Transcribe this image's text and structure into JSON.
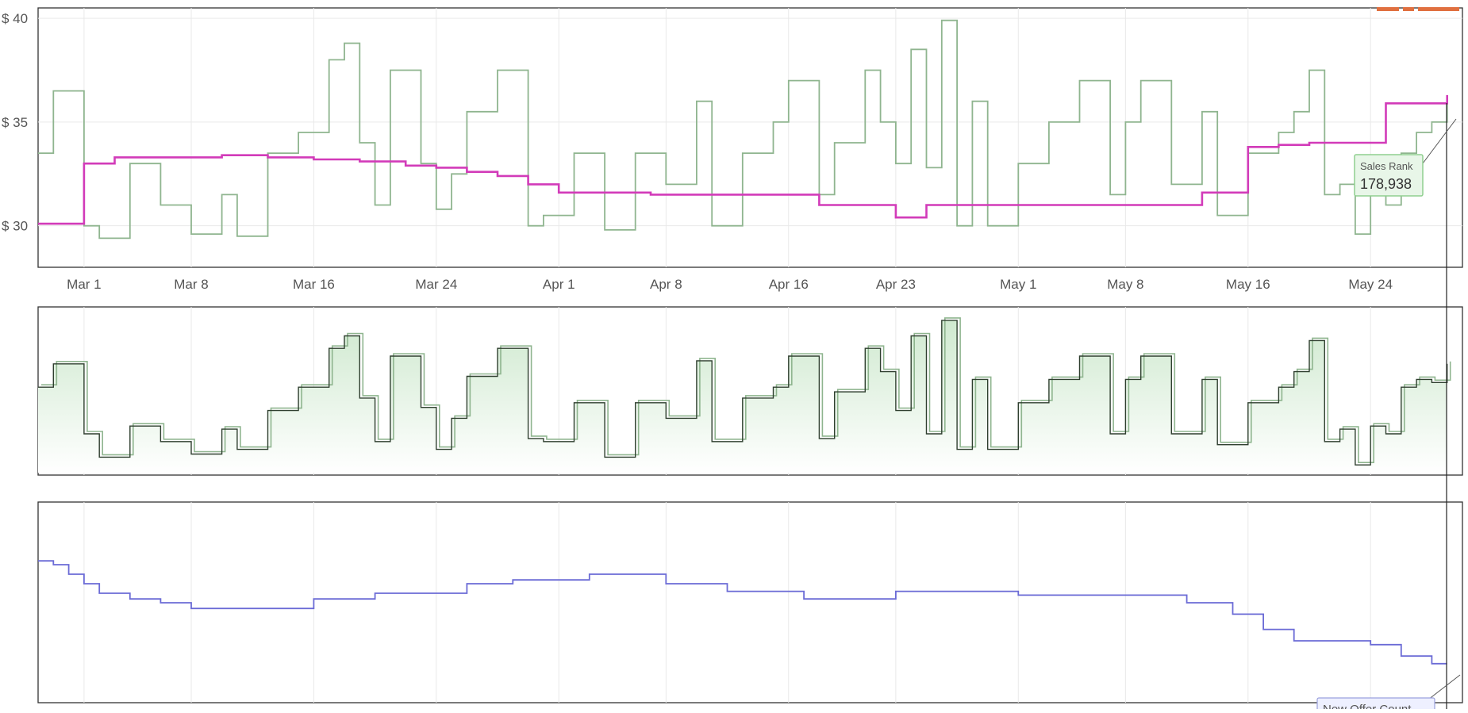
{
  "colors": {
    "amazon_price": "#d23bb9",
    "rank_outline": "#8fb58f",
    "rank_line": "#2f3f2f",
    "rank_fill": "#cfe9cf",
    "offer_count": "#6b6bd6",
    "grid": "#e9e9e9",
    "frame": "#333333",
    "tooltip_bg": "#e8f6e8",
    "tooltip_border": "#8fcf8f",
    "marker": "#e07040"
  },
  "x_ticks": [
    "Mar 1",
    "Mar 8",
    "Mar 16",
    "Mar 24",
    "Apr 1",
    "Apr 8",
    "Apr 16",
    "Apr 23",
    "May 1",
    "May 8",
    "May 16",
    "May 24"
  ],
  "y_ticks": [
    "$ 40",
    "$ 35",
    "$ 30"
  ],
  "tooltips": {
    "sales_rank": {
      "label": "Sales Rank",
      "value": "178,938"
    },
    "offer_count": {
      "label": "New Offer Count"
    }
  },
  "chart_data": [
    {
      "type": "line",
      "ylim": [
        28,
        40.5
      ],
      "x_range": [
        "2024-02-27",
        "2024-05-30"
      ],
      "series": [
        {
          "x": [
            "2024-02-27",
            "2024-02-28",
            "2024-03-01",
            "2024-03-03",
            "2024-03-06",
            "2024-03-10",
            "2024-03-13",
            "2024-03-16",
            "2024-03-18",
            "2024-03-19",
            "2024-03-20",
            "2024-03-22",
            "2024-03-24",
            "2024-03-26",
            "2024-03-28",
            "2024-03-30",
            "2024-04-01",
            "2024-04-04",
            "2024-04-07",
            "2024-04-09",
            "2024-04-14",
            "2024-04-18",
            "2024-04-22",
            "2024-04-23",
            "2024-04-25",
            "2024-04-29",
            "2024-05-04",
            "2024-05-10",
            "2024-05-13",
            "2024-05-15",
            "2024-05-16",
            "2024-05-18",
            "2024-05-20",
            "2024-05-22",
            "2024-05-25",
            "2024-05-27",
            "2024-05-29"
          ],
          "y": [
            30.1,
            30.1,
            33.0,
            33.3,
            33.3,
            33.4,
            33.3,
            33.2,
            33.2,
            33.1,
            33.1,
            32.9,
            32.8,
            32.6,
            32.4,
            32.0,
            31.6,
            31.6,
            31.5,
            31.5,
            31.5,
            31.0,
            31.0,
            30.4,
            31.0,
            31.0,
            31.0,
            31.0,
            31.6,
            31.6,
            33.8,
            33.9,
            34.0,
            34.0,
            35.9,
            35.9,
            36.3
          ]
        },
        {
          "x": [
            "2024-02-27",
            "2024-02-28",
            "2024-03-01",
            "2024-03-02",
            "2024-03-04",
            "2024-03-06",
            "2024-03-08",
            "2024-03-10",
            "2024-03-11",
            "2024-03-13",
            "2024-03-15",
            "2024-03-17",
            "2024-03-18",
            "2024-03-19",
            "2024-03-20",
            "2024-03-21",
            "2024-03-23",
            "2024-03-24",
            "2024-03-25",
            "2024-03-26",
            "2024-03-28",
            "2024-03-30",
            "2024-03-31",
            "2024-04-02",
            "2024-04-04",
            "2024-04-06",
            "2024-04-08",
            "2024-04-10",
            "2024-04-11",
            "2024-04-13",
            "2024-04-15",
            "2024-04-16",
            "2024-04-18",
            "2024-04-19",
            "2024-04-21",
            "2024-04-22",
            "2024-04-23",
            "2024-04-24",
            "2024-04-25",
            "2024-04-26",
            "2024-04-27",
            "2024-04-28",
            "2024-04-29",
            "2024-05-01",
            "2024-05-03",
            "2024-05-05",
            "2024-05-07",
            "2024-05-08",
            "2024-05-09",
            "2024-05-11",
            "2024-05-13",
            "2024-05-14",
            "2024-05-16",
            "2024-05-18",
            "2024-05-19",
            "2024-05-20",
            "2024-05-21",
            "2024-05-22",
            "2024-05-23",
            "2024-05-24",
            "2024-05-25",
            "2024-05-26",
            "2024-05-27",
            "2024-05-28",
            "2024-05-29"
          ],
          "y": [
            33.5,
            36.5,
            30.0,
            29.4,
            33.0,
            31.0,
            29.6,
            31.5,
            29.5,
            33.5,
            34.5,
            38.0,
            38.8,
            34.0,
            31.0,
            37.5,
            33.0,
            30.8,
            32.5,
            35.5,
            37.5,
            30.0,
            30.5,
            33.5,
            29.8,
            33.5,
            32.0,
            36.0,
            30.0,
            33.5,
            35.0,
            37.0,
            31.5,
            34.0,
            37.5,
            35.0,
            33.0,
            38.5,
            32.8,
            39.9,
            30.0,
            36.0,
            30.0,
            33.0,
            35.0,
            37.0,
            31.5,
            35.0,
            37.0,
            32.0,
            35.5,
            30.5,
            33.5,
            34.5,
            35.5,
            37.5,
            31.5,
            32.0,
            29.6,
            32.0,
            31.0,
            33.5,
            34.5,
            35.0,
            36.0
          ]
        }
      ]
    },
    {
      "type": "area",
      "ylim": [
        0,
        100
      ],
      "x_range": [
        "2024-02-27",
        "2024-05-30"
      ],
      "series": [
        {
          "x": [
            "2024-02-27",
            "2024-02-28",
            "2024-03-01",
            "2024-03-02",
            "2024-03-04",
            "2024-03-06",
            "2024-03-08",
            "2024-03-10",
            "2024-03-11",
            "2024-03-13",
            "2024-03-15",
            "2024-03-17",
            "2024-03-18",
            "2024-03-19",
            "2024-03-20",
            "2024-03-21",
            "2024-03-23",
            "2024-03-24",
            "2024-03-25",
            "2024-03-26",
            "2024-03-28",
            "2024-03-30",
            "2024-03-31",
            "2024-04-02",
            "2024-04-04",
            "2024-04-06",
            "2024-04-08",
            "2024-04-10",
            "2024-04-11",
            "2024-04-13",
            "2024-04-15",
            "2024-04-16",
            "2024-04-18",
            "2024-04-19",
            "2024-04-21",
            "2024-04-22",
            "2024-04-23",
            "2024-04-24",
            "2024-04-25",
            "2024-04-26",
            "2024-04-27",
            "2024-04-28",
            "2024-04-29",
            "2024-05-01",
            "2024-05-03",
            "2024-05-05",
            "2024-05-07",
            "2024-05-08",
            "2024-05-09",
            "2024-05-11",
            "2024-05-13",
            "2024-05-14",
            "2024-05-16",
            "2024-05-18",
            "2024-05-19",
            "2024-05-20",
            "2024-05-21",
            "2024-05-22",
            "2024-05-23",
            "2024-05-24",
            "2024-05-25",
            "2024-05-26",
            "2024-05-27",
            "2024-05-28",
            "2024-05-29"
          ],
          "y": [
            55,
            70,
            25,
            10,
            30,
            20,
            12,
            28,
            15,
            40,
            55,
            80,
            88,
            48,
            20,
            75,
            42,
            15,
            35,
            62,
            80,
            22,
            20,
            45,
            10,
            45,
            35,
            72,
            20,
            48,
            55,
            75,
            22,
            52,
            80,
            65,
            40,
            88,
            25,
            98,
            15,
            60,
            15,
            45,
            60,
            75,
            25,
            60,
            75,
            25,
            60,
            18,
            45,
            55,
            65,
            85,
            20,
            28,
            5,
            30,
            25,
            55,
            60,
            58,
            70
          ]
        }
      ]
    },
    {
      "type": "line",
      "ylim": [
        0,
        100
      ],
      "x_range": [
        "2024-02-27",
        "2024-05-30"
      ],
      "series": [
        {
          "x": [
            "2024-02-27",
            "2024-02-28",
            "2024-02-29",
            "2024-03-01",
            "2024-03-02",
            "2024-03-04",
            "2024-03-06",
            "2024-03-08",
            "2024-03-14",
            "2024-03-16",
            "2024-03-20",
            "2024-03-26",
            "2024-03-29",
            "2024-04-01",
            "2024-04-03",
            "2024-04-08",
            "2024-04-12",
            "2024-04-17",
            "2024-04-23",
            "2024-04-28",
            "2024-05-01",
            "2024-05-04",
            "2024-05-10",
            "2024-05-12",
            "2024-05-15",
            "2024-05-17",
            "2024-05-19",
            "2024-05-22",
            "2024-05-24",
            "2024-05-26",
            "2024-05-28",
            "2024-05-29"
          ],
          "y": [
            72,
            70,
            65,
            60,
            55,
            52,
            50,
            47,
            47,
            52,
            55,
            60,
            62,
            62,
            65,
            60,
            56,
            52,
            56,
            56,
            54,
            54,
            54,
            50,
            44,
            36,
            30,
            30,
            28,
            22,
            18,
            18
          ]
        }
      ]
    }
  ]
}
